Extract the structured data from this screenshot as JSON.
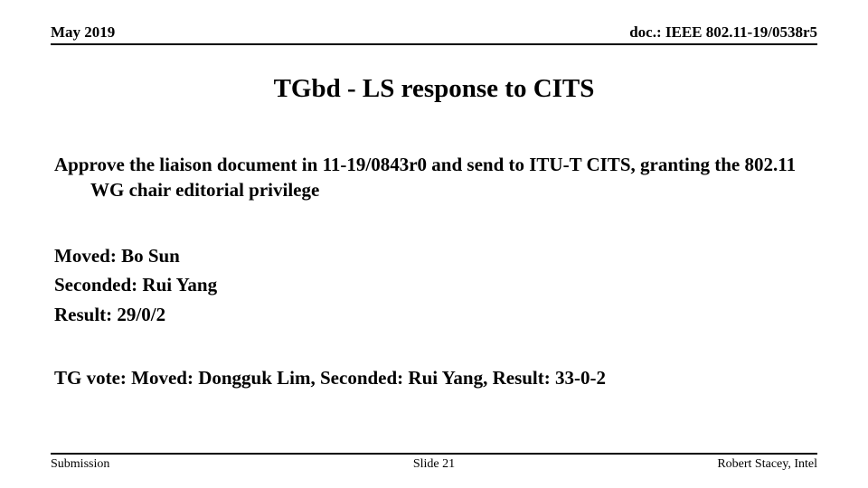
{
  "header": {
    "date": "May 2019",
    "docnum": "doc.: IEEE 802.11-19/0538r5"
  },
  "title": "TGbd - LS response to CITS",
  "motion": "Approve the liaison document in 11-19/0843r0 and send to ITU-T CITS, granting the 802.11 WG chair editorial privilege",
  "vote": {
    "moved": "Moved: Bo Sun",
    "seconded": "Seconded: Rui Yang",
    "result": "Result: 29/0/2"
  },
  "tgvote": "TG vote: Moved: Dongguk Lim, Seconded: Rui Yang, Result: 33-0-2",
  "footer": {
    "left": "Submission",
    "center": "Slide 21",
    "right": "Robert Stacey, Intel"
  }
}
